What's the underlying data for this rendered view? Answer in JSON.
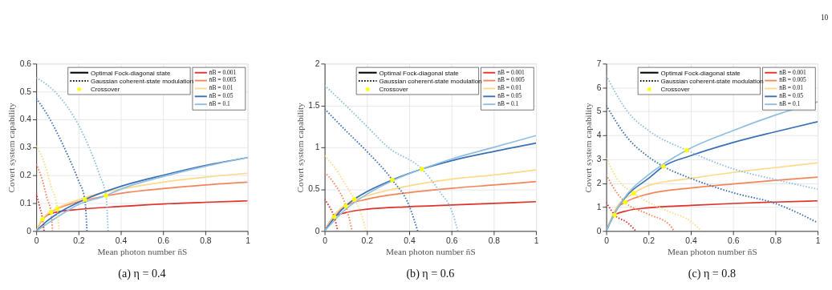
{
  "chart_data": [
    {
      "type": "line",
      "title": "(a) η = 0.4",
      "xlabel": "Mean photon number n̄S",
      "ylabel": "Covert system capability",
      "xlim": [
        0,
        1
      ],
      "xticks": [
        0,
        0.2,
        0.4,
        0.6,
        0.8,
        1
      ],
      "ylim": [
        0,
        0.6
      ],
      "yticks": [
        0,
        0.1,
        0.2,
        0.3,
        0.4,
        0.5,
        0.6
      ],
      "grid": true,
      "legend": "top right",
      "annotations": [
        "Optimal Fock-diagonal state",
        "Gaussian coherent-state modulation"
      ],
      "series": [
        {
          "name": "n̄B = 0.001",
          "color": "#e0312a",
          "line_style": "solid",
          "x": [
            0,
            0.03,
            0.05,
            0.1,
            0.2,
            0.4,
            0.6,
            0.8,
            1
          ],
          "values": [
            0,
            0.042,
            0.056,
            0.068,
            0.077,
            0.088,
            0.097,
            0.103,
            0.108
          ]
        },
        {
          "name": "n̄B = 0.005",
          "color": "#f4855a",
          "line_style": "solid",
          "x": [
            0,
            0.03,
            0.07,
            0.1,
            0.2,
            0.33,
            0.4,
            0.6,
            0.8,
            1
          ],
          "values": [
            0,
            0.042,
            0.068,
            0.08,
            0.105,
            0.126,
            0.135,
            0.152,
            0.165,
            0.175
          ]
        },
        {
          "name": "n̄B = 0.01",
          "color": "#fdd98a",
          "line_style": "solid",
          "x": [
            0,
            0.03,
            0.1,
            0.2,
            0.3,
            0.4,
            0.6,
            0.8,
            1
          ],
          "values": [
            0,
            0.044,
            0.082,
            0.112,
            0.135,
            0.15,
            0.175,
            0.193,
            0.207
          ]
        },
        {
          "name": "n̄B = 0.05",
          "color": "#3a6eb5",
          "line_style": "solid",
          "x": [
            0,
            0.05,
            0.1,
            0.23,
            0.4,
            0.6,
            0.8,
            1
          ],
          "values": [
            0,
            0.035,
            0.062,
            0.113,
            0.16,
            0.2,
            0.235,
            0.263
          ]
        },
        {
          "name": "n̄B = 0.1",
          "color": "#8ebfe0",
          "line_style": "solid",
          "x": [
            0,
            0.1,
            0.2,
            0.33,
            0.4,
            0.6,
            0.8,
            1
          ],
          "values": [
            0,
            0.05,
            0.095,
            0.127,
            0.15,
            0.195,
            0.232,
            0.263
          ]
        },
        {
          "color": "#e0312a",
          "line_style": "dotted",
          "x": [
            0,
            0.015,
            0.03,
            0.037
          ],
          "values": [
            0.135,
            0.09,
            0.042,
            0
          ]
        },
        {
          "color": "#f4855a",
          "line_style": "dotted",
          "x": [
            0,
            0.03,
            0.05,
            0.07,
            0.077
          ],
          "values": [
            0.24,
            0.18,
            0.12,
            0.068,
            0
          ]
        },
        {
          "color": "#fdd98a",
          "line_style": "dotted",
          "x": [
            0,
            0.04,
            0.07,
            0.1,
            0.108
          ],
          "values": [
            0.305,
            0.24,
            0.16,
            0.08,
            0
          ]
        },
        {
          "color": "#3a6eb5",
          "line_style": "dotted",
          "x": [
            0,
            0.05,
            0.1,
            0.15,
            0.2,
            0.23,
            0.24
          ],
          "values": [
            0.475,
            0.42,
            0.35,
            0.27,
            0.18,
            0.113,
            0
          ]
        },
        {
          "color": "#8ebfe0",
          "line_style": "dotted",
          "x": [
            0,
            0.1,
            0.2,
            0.25,
            0.3,
            0.33,
            0.34
          ],
          "values": [
            0.55,
            0.49,
            0.38,
            0.3,
            0.2,
            0.127,
            0
          ]
        },
        {
          "type": "scatter",
          "name": "Crossover",
          "color": "#ffff00",
          "marker": "circle",
          "x": [
            0.03,
            0.07,
            0.1,
            0.23,
            0.33
          ],
          "values": [
            0.042,
            0.068,
            0.08,
            0.113,
            0.127
          ]
        }
      ]
    },
    {
      "type": "line",
      "title": "(b) η = 0.6",
      "xlabel": "Mean photon number n̄S",
      "ylabel": "Covert system capability",
      "xlim": [
        0,
        1
      ],
      "xticks": [
        0,
        0.2,
        0.4,
        0.6,
        0.8,
        1
      ],
      "ylim": [
        0,
        2
      ],
      "yticks": [
        0,
        0.5,
        1,
        1.5,
        2
      ],
      "grid": true,
      "legend": "top right",
      "annotations": [
        "Optimal Fock-diagonal state",
        "Gaussian coherent-state modulation"
      ],
      "series": [
        {
          "name": "n̄B = 0.001",
          "color": "#e0312a",
          "line_style": "solid",
          "x": [
            0,
            0.045,
            0.1,
            0.2,
            0.4,
            0.6,
            0.8,
            1
          ],
          "values": [
            0,
            0.17,
            0.22,
            0.26,
            0.29,
            0.31,
            0.33,
            0.35
          ]
        },
        {
          "name": "n̄B = 0.005",
          "color": "#f4855a",
          "line_style": "solid",
          "x": [
            0,
            0.05,
            0.1,
            0.2,
            0.4,
            0.6,
            0.8,
            1
          ],
          "values": [
            0,
            0.2,
            0.3,
            0.38,
            0.46,
            0.51,
            0.55,
            0.59
          ]
        },
        {
          "name": "n̄B = 0.01",
          "color": "#fdd98a",
          "line_style": "solid",
          "x": [
            0,
            0.05,
            0.14,
            0.2,
            0.4,
            0.6,
            0.8,
            1
          ],
          "values": [
            0,
            0.2,
            0.37,
            0.42,
            0.54,
            0.62,
            0.67,
            0.73
          ]
        },
        {
          "name": "n̄B = 0.05",
          "color": "#3a6eb5",
          "line_style": "solid",
          "x": [
            0,
            0.05,
            0.14,
            0.2,
            0.32,
            0.46,
            0.6,
            0.8,
            1
          ],
          "values": [
            0,
            0.17,
            0.38,
            0.47,
            0.61,
            0.74,
            0.84,
            0.95,
            1.05
          ]
        },
        {
          "name": "n̄B = 0.1",
          "color": "#8ebfe0",
          "line_style": "solid",
          "x": [
            0,
            0.1,
            0.2,
            0.32,
            0.46,
            0.6,
            0.8,
            1
          ],
          "values": [
            0,
            0.26,
            0.44,
            0.6,
            0.74,
            0.86,
            1.0,
            1.14
          ]
        },
        {
          "color": "#e0312a",
          "line_style": "dotted",
          "x": [
            0,
            0.02,
            0.045,
            0.062
          ],
          "values": [
            0.38,
            0.3,
            0.17,
            0
          ]
        },
        {
          "color": "#f4855a",
          "line_style": "dotted",
          "x": [
            0,
            0.05,
            0.1,
            0.13
          ],
          "values": [
            0.7,
            0.55,
            0.3,
            0
          ]
        },
        {
          "color": "#fdd98a",
          "line_style": "dotted",
          "x": [
            0,
            0.05,
            0.1,
            0.14,
            0.18,
            0.195
          ],
          "values": [
            0.9,
            0.75,
            0.55,
            0.38,
            0.15,
            0
          ]
        },
        {
          "color": "#3a6eb5",
          "line_style": "dotted",
          "x": [
            0,
            0.1,
            0.2,
            0.32,
            0.4,
            0.44
          ],
          "values": [
            1.46,
            1.2,
            0.95,
            0.61,
            0.3,
            0
          ]
        },
        {
          "color": "#8ebfe0",
          "line_style": "dotted",
          "x": [
            0,
            0.1,
            0.2,
            0.3,
            0.46,
            0.55,
            0.6,
            0.63
          ],
          "values": [
            1.74,
            1.5,
            1.25,
            1.0,
            0.74,
            0.45,
            0.25,
            0
          ]
        },
        {
          "type": "scatter",
          "name": "Crossover",
          "color": "#ffff00",
          "marker": "circle",
          "x": [
            0.045,
            0.1,
            0.14,
            0.32,
            0.46
          ],
          "values": [
            0.17,
            0.3,
            0.38,
            0.61,
            0.74
          ]
        }
      ]
    },
    {
      "type": "line",
      "title": "(c) η = 0.8",
      "xlabel": "Mean photon number n̄S",
      "ylabel": "Covert system capability",
      "xlim": [
        0,
        1
      ],
      "xticks": [
        0,
        0.2,
        0.4,
        0.6,
        0.8,
        1
      ],
      "ylim": [
        0,
        7
      ],
      "yticks": [
        0,
        1,
        2,
        3,
        4,
        5,
        6,
        7
      ],
      "grid": true,
      "legend": "top right",
      "annotations": [
        "Optimal Fock-diagonal state",
        "Gaussian coherent-state modulation",
        "10"
      ],
      "series": [
        {
          "name": "n̄B = 0.001",
          "color": "#e0312a",
          "line_style": "solid",
          "x": [
            0,
            0.04,
            0.1,
            0.2,
            0.4,
            0.6,
            0.8,
            1
          ],
          "values": [
            0,
            0.67,
            0.85,
            0.97,
            1.07,
            1.15,
            1.21,
            1.26
          ]
        },
        {
          "name": "n̄B = 0.005",
          "color": "#f4855a",
          "line_style": "solid",
          "x": [
            0,
            0.05,
            0.09,
            0.2,
            0.4,
            0.6,
            0.8,
            1
          ],
          "values": [
            0,
            0.95,
            1.2,
            1.55,
            1.8,
            1.97,
            2.12,
            2.25
          ]
        },
        {
          "name": "n̄B = 0.01",
          "color": "#fdd98a",
          "line_style": "solid",
          "x": [
            0,
            0.05,
            0.13,
            0.2,
            0.4,
            0.6,
            0.8,
            1
          ],
          "values": [
            0,
            1.0,
            1.58,
            1.9,
            2.2,
            2.45,
            2.65,
            2.85
          ]
        },
        {
          "name": "n̄B = 0.05",
          "color": "#3a6eb5",
          "line_style": "solid",
          "x": [
            0,
            0.05,
            0.1,
            0.2,
            0.27,
            0.4,
            0.6,
            0.8,
            1
          ],
          "values": [
            0,
            0.9,
            1.5,
            2.2,
            2.7,
            3.15,
            3.7,
            4.15,
            4.57
          ]
        },
        {
          "name": "n̄B = 0.1",
          "color": "#8ebfe0",
          "line_style": "solid",
          "x": [
            0,
            0.05,
            0.1,
            0.2,
            0.38,
            0.6,
            0.8,
            1
          ],
          "values": [
            0,
            0.9,
            1.55,
            2.35,
            3.38,
            4.2,
            4.85,
            5.4
          ]
        },
        {
          "color": "#e0312a",
          "line_style": "dotted",
          "x": [
            0,
            0.04,
            0.1,
            0.14
          ],
          "values": [
            1.2,
            0.67,
            0.35,
            0
          ]
        },
        {
          "color": "#f4855a",
          "line_style": "dotted",
          "x": [
            0,
            0.05,
            0.09,
            0.2,
            0.3,
            0.32
          ],
          "values": [
            2.35,
            1.6,
            1.2,
            0.7,
            0.25,
            0
          ]
        },
        {
          "color": "#fdd98a",
          "line_style": "dotted",
          "x": [
            0,
            0.05,
            0.13,
            0.2,
            0.3,
            0.4,
            0.45
          ],
          "values": [
            3.05,
            2.2,
            1.58,
            1.2,
            0.8,
            0.4,
            0
          ]
        },
        {
          "color": "#3a6eb5",
          "line_style": "dotted",
          "x": [
            0,
            0.1,
            0.2,
            0.27,
            0.4,
            0.6,
            0.8,
            1
          ],
          "values": [
            5.25,
            3.9,
            3.1,
            2.7,
            2.2,
            1.6,
            1.15,
            0.35
          ]
        },
        {
          "color": "#8ebfe0",
          "line_style": "dotted",
          "x": [
            0,
            0.1,
            0.2,
            0.38,
            0.6,
            0.8,
            1
          ],
          "values": [
            6.5,
            5.0,
            4.2,
            3.38,
            2.6,
            2.15,
            1.75
          ]
        },
        {
          "type": "scatter",
          "name": "Crossover",
          "color": "#ffff00",
          "marker": "circle",
          "x": [
            0.04,
            0.09,
            0.13,
            0.27,
            0.38
          ],
          "values": [
            0.67,
            1.2,
            1.58,
            2.7,
            3.38
          ]
        }
      ]
    }
  ]
}
